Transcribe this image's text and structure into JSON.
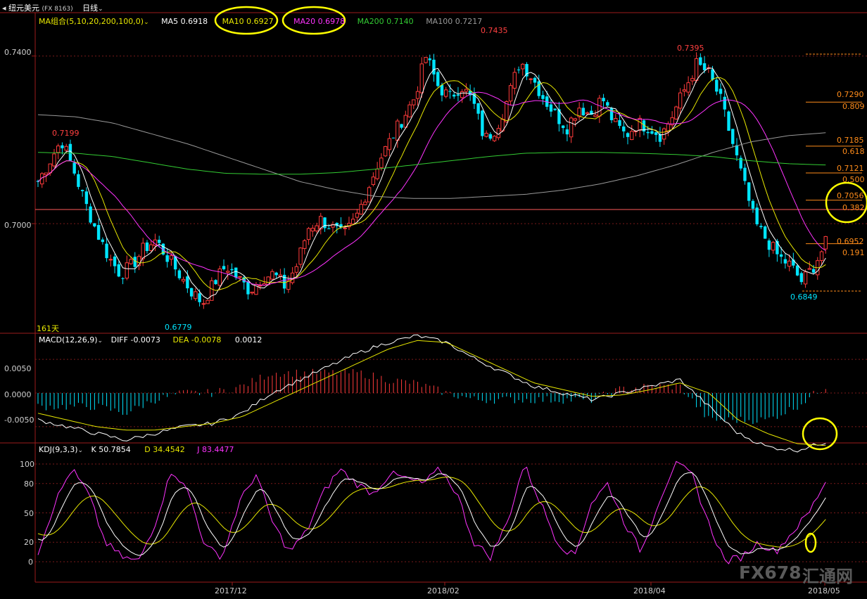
{
  "header": {
    "symbol": "纽元美元",
    "code": "(FX 8163)",
    "period": "日线"
  },
  "ma_legend": {
    "label": "MA组合(5,10,20,200,100,0)",
    "items": [
      {
        "label": "MA5",
        "value": "0.6918",
        "color": "#ffffff"
      },
      {
        "label": "MA10",
        "value": "0.6927",
        "color": "#e8e800"
      },
      {
        "label": "MA20",
        "value": "0.6978",
        "color": "#ff33ff"
      },
      {
        "label": "MA200",
        "value": "0.7140",
        "color": "#33cc33"
      },
      {
        "label": "MA100",
        "value": "0.7217",
        "color": "#999999"
      }
    ]
  },
  "price_panel": {
    "y_ticks": [
      "0.7400",
      "0.7000"
    ],
    "period_label": "161天",
    "annotations": [
      {
        "text": "0.7199",
        "color": "#ff4040"
      },
      {
        "text": "0.6779",
        "color": "#00e5ff"
      },
      {
        "text": "0.7435",
        "color": "#ff4040"
      },
      {
        "text": "0.7395",
        "color": "#ff4040"
      },
      {
        "text": "0.6849",
        "color": "#00e5ff"
      }
    ],
    "fib_levels": [
      {
        "price": "0.7290",
        "ratio": "0.809"
      },
      {
        "price": "0.7185",
        "ratio": "0.618"
      },
      {
        "price": "0.7121",
        "ratio": "0.500"
      },
      {
        "price": "0.7056",
        "ratio": "0.382"
      },
      {
        "price": "0.6952",
        "ratio": "0.191"
      }
    ]
  },
  "macd_panel": {
    "label": "MACD(12,26,9)",
    "diff_label": "DIFF",
    "diff_value": "-0.0073",
    "dea_label": "DEA",
    "dea_value": "-0.0078",
    "macd_value": "0.0012",
    "y_ticks": [
      "0.0050",
      "0.0000",
      "-0.0050"
    ]
  },
  "kdj_panel": {
    "label": "KDJ(9,3,3)",
    "k_label": "K",
    "k_value": "50.7854",
    "d_label": "D",
    "d_value": "34.4542",
    "j_label": "J",
    "j_value": "83.4477",
    "y_ticks": [
      "100",
      "80",
      "50",
      "20",
      "0"
    ]
  },
  "x_axis": {
    "labels": [
      "2017/12",
      "2018/02",
      "2018/04",
      "2018/05"
    ]
  },
  "watermark": {
    "text": "FX678",
    "text2": "汇通网"
  },
  "colors": {
    "up": "#ff3b3b",
    "down": "#00e5ff",
    "ma5": "#ffffff",
    "ma10": "#e8e800",
    "ma20": "#ff33ff",
    "ma200": "#33cc33",
    "ma100": "#999999",
    "fib": "#ff8c1a",
    "highlight_circle": "#ffff00"
  },
  "chart_data": [
    {
      "type": "candlestick",
      "title": "纽元美元 (FX 8163) 日线",
      "x_range": [
        "2017/11",
        "2018/05"
      ],
      "ylim": [
        0.674,
        0.747
      ],
      "keypoints": [
        {
          "label": "high",
          "value": 0.7199
        },
        {
          "label": "low",
          "value": 0.6779
        },
        {
          "label": "high",
          "value": 0.7435
        },
        {
          "label": "high",
          "value": 0.7395
        },
        {
          "label": "low",
          "value": 0.6849
        }
      ],
      "close_path": [
        0.71,
        0.715,
        0.7199,
        0.713,
        0.705,
        0.698,
        0.692,
        0.688,
        0.69,
        0.694,
        0.696,
        0.692,
        0.688,
        0.684,
        0.681,
        0.686,
        0.69,
        0.687,
        0.684,
        0.687,
        0.688,
        0.685,
        0.69,
        0.699,
        0.701,
        0.699,
        0.697,
        0.701,
        0.708,
        0.715,
        0.72,
        0.725,
        0.73,
        0.74,
        0.733,
        0.73,
        0.733,
        0.729,
        0.72,
        0.723,
        0.73,
        0.739,
        0.735,
        0.73,
        0.726,
        0.723,
        0.728,
        0.726,
        0.73,
        0.724,
        0.721,
        0.724,
        0.723,
        0.721,
        0.726,
        0.732,
        0.738,
        0.736,
        0.73,
        0.72,
        0.71,
        0.7,
        0.696,
        0.692,
        0.69,
        0.686,
        0.69,
        0.6952
      ],
      "series": [
        {
          "name": "MA5",
          "last": 0.6918
        },
        {
          "name": "MA10",
          "last": 0.6927
        },
        {
          "name": "MA20",
          "last": 0.6978
        },
        {
          "name": "MA200",
          "last": 0.714
        },
        {
          "name": "MA100",
          "last": 0.7217
        }
      ],
      "fib_levels": [
        {
          "ratio": 0.809,
          "price": 0.729
        },
        {
          "ratio": 0.618,
          "price": 0.7185
        },
        {
          "ratio": 0.5,
          "price": 0.7121
        },
        {
          "ratio": 0.382,
          "price": 0.7056
        },
        {
          "ratio": 0.191,
          "price": 0.6952
        }
      ]
    },
    {
      "type": "bar",
      "title": "MACD(12,26,9)",
      "ylim": [
        -0.0072,
        0.0072
      ],
      "series": [
        {
          "name": "DIFF",
          "last": -0.0073,
          "path": [
            -0.004,
            -0.005,
            -0.006,
            -0.007,
            -0.006,
            -0.005,
            -0.0045,
            -0.003,
            0.0,
            0.002,
            0.004,
            0.006,
            0.0075,
            0.0085,
            0.0075,
            0.005,
            0.003,
            0.001,
            0.0,
            -0.001,
            0.0,
            0.001,
            0.002,
            -0.002,
            -0.006,
            -0.008,
            -0.0085,
            -0.0073
          ]
        },
        {
          "name": "DEA",
          "last": -0.0078,
          "path": [
            -0.003,
            -0.004,
            -0.005,
            -0.0055,
            -0.0055,
            -0.005,
            -0.0045,
            -0.0035,
            -0.0015,
            0.0005,
            0.0025,
            0.0045,
            0.0065,
            0.0078,
            0.0075,
            0.0055,
            0.0035,
            0.0015,
            0.0005,
            -0.0005,
            -0.0003,
            0.0005,
            0.0015,
            0.0,
            -0.004,
            -0.006,
            -0.0075,
            -0.0078
          ]
        },
        {
          "name": "MACD",
          "last": 0.0012
        }
      ]
    },
    {
      "type": "line",
      "title": "KDJ(9,3,3)",
      "ylim": [
        -5,
        105
      ],
      "series": [
        {
          "name": "K",
          "last": 50.7854
        },
        {
          "name": "D",
          "last": 34.4542
        },
        {
          "name": "J",
          "last": 83.4477
        }
      ]
    }
  ]
}
